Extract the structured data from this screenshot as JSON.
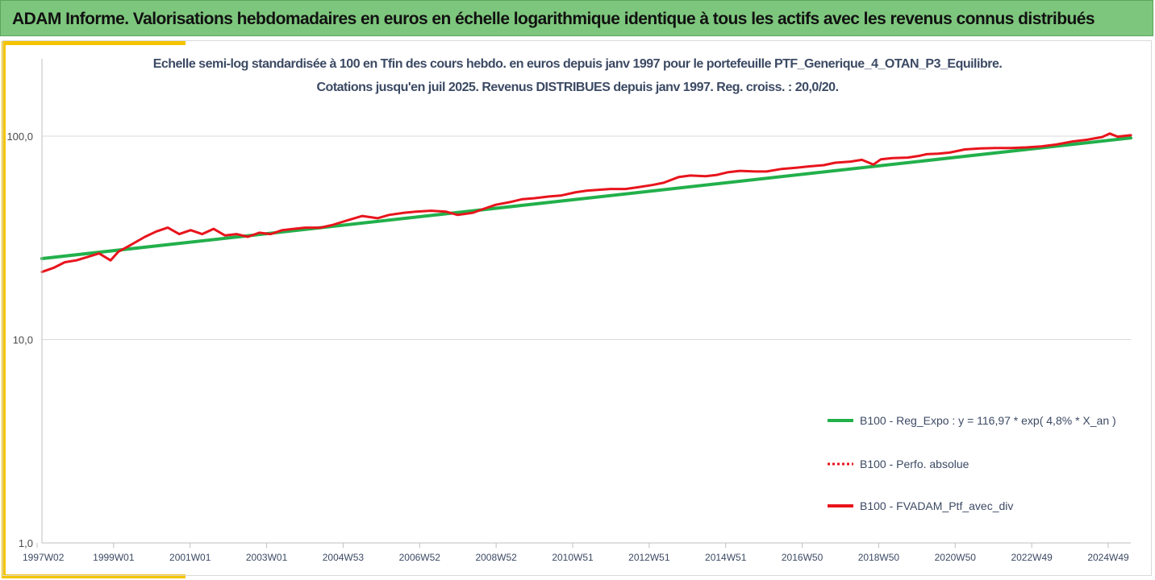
{
  "banner": {
    "title": "ADAM Informe. Valorisations hebdomadaires en euros en échelle logarithmique identique à tous les actifs avec les revenus connus distribués"
  },
  "chart_data": {
    "type": "line",
    "title_line1": "Echelle semi-log standardisée  à 100 en Tfin des cours hebdo.  en euros depuis janv 1997 pour le portefeuille PTF_Generique_4_OTAN_P3_Equilibre.",
    "title_line2": "Cotations  jusqu'en juil 2025. Revenus DISTRIBUES depuis janv 1997. Reg. croiss. : 20,0/20.",
    "y_scale": "log",
    "ylim": [
      1,
      200
    ],
    "y_tick_values": [
      1,
      10,
      100
    ],
    "y_tick_labels": [
      "1,0",
      "10,0",
      "100,0"
    ],
    "grid": "horizontal",
    "legend_position": "right",
    "x_tick_labels": [
      "1997W02",
      "1999W01",
      "2001W01",
      "2003W01",
      "2004W53",
      "2006W52",
      "2008W52",
      "2010W51",
      "2012W51",
      "2014W51",
      "2016W50",
      "2018W50",
      "2020W50",
      "2022W49",
      "2024W49"
    ],
    "xlim": [
      1997.0,
      2025.55
    ],
    "series": [
      {
        "name": "B100 - Reg_Expo : y = 116,97 * exp( 4,8% *  X_an )",
        "color": "#22b04b",
        "style": "solid",
        "x": [
          1997.0,
          2025.55
        ],
        "values": [
          25.0,
          98.0
        ]
      },
      {
        "name": "B100 - Perfo. absolue",
        "color": "#e8141c",
        "style": "dotted",
        "x": [],
        "values": []
      },
      {
        "name": "B100 - FVADAM_Ptf_avec_div",
        "color": "#e8141c",
        "style": "solid",
        "x": [
          1997.0,
          1997.3,
          1997.6,
          1997.9,
          1998.2,
          1998.5,
          1998.8,
          1999.0,
          1999.3,
          1999.7,
          2000.0,
          2000.3,
          2000.6,
          2000.9,
          2001.2,
          2001.5,
          2001.8,
          2002.1,
          2002.4,
          2002.7,
          2003.0,
          2003.3,
          2003.6,
          2003.9,
          2004.3,
          2004.6,
          2005.0,
          2005.4,
          2005.8,
          2006.1,
          2006.5,
          2006.8,
          2007.2,
          2007.6,
          2007.9,
          2008.3,
          2008.6,
          2008.9,
          2009.3,
          2009.6,
          2009.9,
          2010.3,
          2010.6,
          2011.0,
          2011.3,
          2011.6,
          2011.9,
          2012.3,
          2012.6,
          2013.0,
          2013.3,
          2013.7,
          2014.0,
          2014.4,
          2014.7,
          2015.0,
          2015.3,
          2015.7,
          2016.0,
          2016.4,
          2016.8,
          2017.1,
          2017.5,
          2017.8,
          2018.2,
          2018.5,
          2018.8,
          2019.0,
          2019.3,
          2019.7,
          2020.0,
          2020.2,
          2020.5,
          2020.8,
          2021.2,
          2021.6,
          2022.0,
          2022.4,
          2022.8,
          2023.2,
          2023.6,
          2024.0,
          2024.4,
          2024.8,
          2025.0,
          2025.2,
          2025.55
        ],
        "values": [
          21.5,
          22.5,
          24.0,
          24.5,
          25.5,
          26.5,
          24.5,
          27.0,
          29.0,
          32.0,
          34.0,
          35.5,
          33.0,
          34.5,
          33.0,
          35.0,
          32.5,
          33.0,
          32.0,
          33.5,
          33.0,
          34.5,
          35.0,
          35.5,
          35.5,
          36.5,
          38.5,
          40.5,
          39.5,
          41.0,
          42.0,
          42.5,
          43.0,
          42.5,
          41.0,
          42.0,
          44.0,
          46.0,
          47.5,
          49.0,
          49.5,
          50.5,
          51.0,
          53.0,
          54.0,
          54.5,
          55.0,
          55.0,
          56.0,
          57.5,
          59.0,
          63.0,
          64.0,
          63.5,
          64.5,
          66.5,
          67.5,
          67.0,
          67.0,
          69.0,
          70.0,
          71.0,
          72.0,
          74.0,
          75.0,
          76.5,
          72.5,
          77.0,
          78.0,
          78.5,
          80.0,
          81.5,
          82.0,
          83.0,
          86.0,
          87.0,
          87.5,
          87.5,
          88.0,
          89.0,
          91.0,
          94.0,
          96.0,
          99.0,
          103.0,
          99.5,
          101.0
        ]
      }
    ]
  }
}
